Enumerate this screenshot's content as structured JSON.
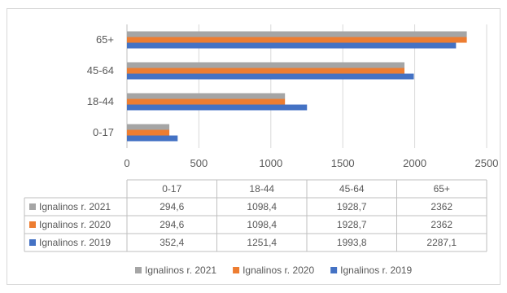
{
  "chart_data": {
    "type": "bar",
    "orientation": "horizontal",
    "categories": [
      "0-17",
      "18-44",
      "45-64",
      "65+"
    ],
    "xlim": [
      0,
      2500
    ],
    "x_ticks": [
      "0",
      "500",
      "1000",
      "1500",
      "2000",
      "2500"
    ],
    "grid": "vertical",
    "legend_position": "bottom",
    "series": [
      {
        "name": "Ignalinos r. 2021",
        "color": "#a5a5a5",
        "values": [
          294.6,
          1098.4,
          1928.7,
          2362
        ],
        "labels": [
          "294,6",
          "1098,4",
          "1928,7",
          "2362"
        ]
      },
      {
        "name": "Ignalinos r. 2020",
        "color": "#ed7d31",
        "values": [
          294.6,
          1098.4,
          1928.7,
          2362
        ],
        "labels": [
          "294,6",
          "1098,4",
          "1928,7",
          "2362"
        ]
      },
      {
        "name": "Ignalinos r. 2019",
        "color": "#4472c4",
        "values": [
          352.4,
          1251.4,
          1993.8,
          2287.1
        ],
        "labels": [
          "352,4",
          "1251,4",
          "1993,8",
          "2287,1"
        ]
      }
    ]
  }
}
